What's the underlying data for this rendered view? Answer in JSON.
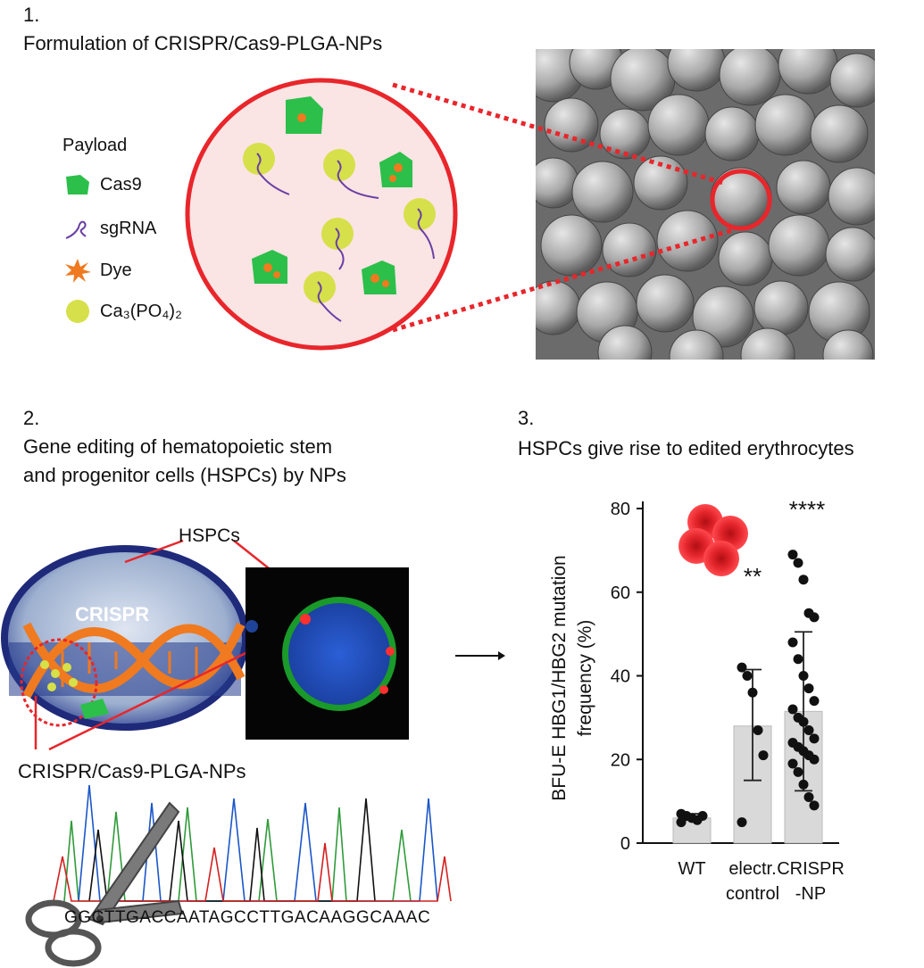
{
  "section1": {
    "number": "1.",
    "title": "Formulation of CRISPR/Cas9-PLGA-NPs",
    "legend": {
      "title": "Payload",
      "items": [
        {
          "label": "Cas9",
          "icon": "cas9-protein-icon"
        },
        {
          "label": "sgRNA",
          "icon": "sgrna-icon"
        },
        {
          "label": "Dye",
          "icon": "dye-burst-icon"
        },
        {
          "label": "Ca₃(PO₄)₂",
          "icon": "calcium-phosphate-icon"
        }
      ]
    },
    "colors": {
      "circle": "#e8262b",
      "cas9": "#2cbf4a",
      "caphos": "#d6e04a",
      "sgrna": "#6a3fa3",
      "dye": "#f07a1f"
    }
  },
  "section2": {
    "number": "2.",
    "title_line1": "Gene editing of hematopoietic stem",
    "title_line2": "and progenitor cells (HSPCs) by NPs",
    "hspcs_label": "HSPCs",
    "crispr_label": "CRISPR",
    "np_label": "CRISPR/Cas9-PLGA-NPs",
    "sequence": "GGCTTGACCAATAGCCTTGACAAGGCAAAC"
  },
  "section3": {
    "number": "3.",
    "title": "HSPCs give rise to edited erythrocytes"
  },
  "chart_data": {
    "type": "bar",
    "categories": [
      "WT",
      "electr. control",
      "CRISPR -NP"
    ],
    "category_lines": [
      [
        "WT"
      ],
      [
        "electr.",
        "control"
      ],
      [
        "CRISPR",
        "-NP"
      ]
    ],
    "values": [
      6,
      28,
      31.5
    ],
    "error": [
      [
        5.5,
        7
      ],
      [
        15,
        41.5
      ],
      [
        12.5,
        50.5
      ]
    ],
    "points": [
      [
        7,
        6.5,
        6,
        5.5,
        6.5,
        5
      ],
      [
        42,
        40,
        36,
        27,
        21,
        5
      ],
      [
        69,
        67,
        63,
        55,
        54,
        48,
        44,
        40,
        37,
        34,
        32,
        30,
        29,
        27,
        25,
        24,
        23,
        22,
        21,
        20,
        19,
        17,
        14,
        11,
        9
      ]
    ],
    "significance": [
      "",
      "**",
      "****"
    ],
    "ylabel_line1": "BFU-E HBG1/HBG2 mutation",
    "ylabel_line2": "frequency (%)",
    "yticks": [
      0,
      20,
      40,
      60,
      80
    ],
    "ylim": [
      0,
      80
    ],
    "bar_color": "#d9d9d9"
  }
}
